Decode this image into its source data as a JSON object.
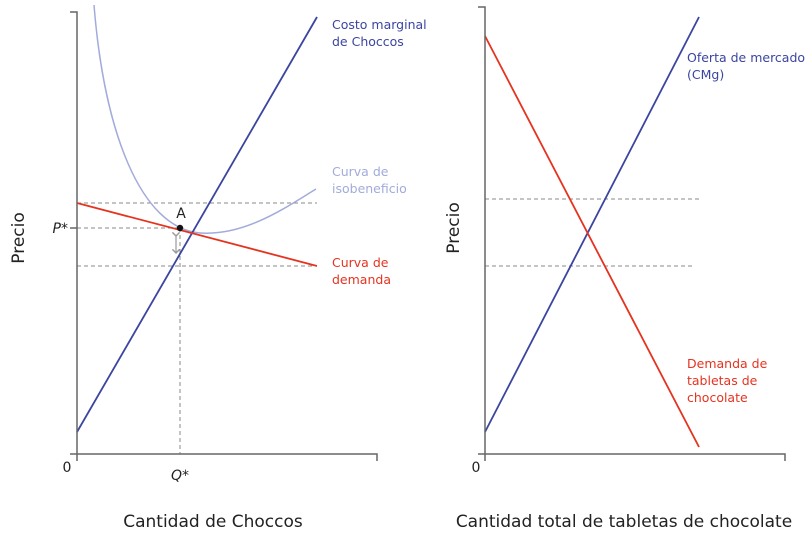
{
  "colors": {
    "supply": "#3b45a0",
    "demand": "#e5331f",
    "isoprofit": "#a2abdb",
    "axis": "#666666",
    "dashed": "#888888"
  },
  "left_panel": {
    "y_axis_label": "Precio",
    "x_axis_label": "Cantidad de Choccos",
    "origin_label": "0",
    "p_star": "P*",
    "q_star": "Q*",
    "point_label": "A",
    "mc_label": [
      "Costo marginal",
      "de Choccos"
    ],
    "isoprofit_label": [
      "Curva de",
      "isobeneficio"
    ],
    "demand_label": [
      "Curva de",
      "demanda"
    ]
  },
  "right_panel": {
    "y_axis_label": "Precio",
    "x_axis_label": "Cantidad total de tabletas de chocolate",
    "origin_label": "0",
    "supply_label": [
      "Oferta de mercado",
      "(CMg)"
    ],
    "demand_label": [
      "Demanda de",
      "tabletas de",
      "chocolate"
    ]
  }
}
